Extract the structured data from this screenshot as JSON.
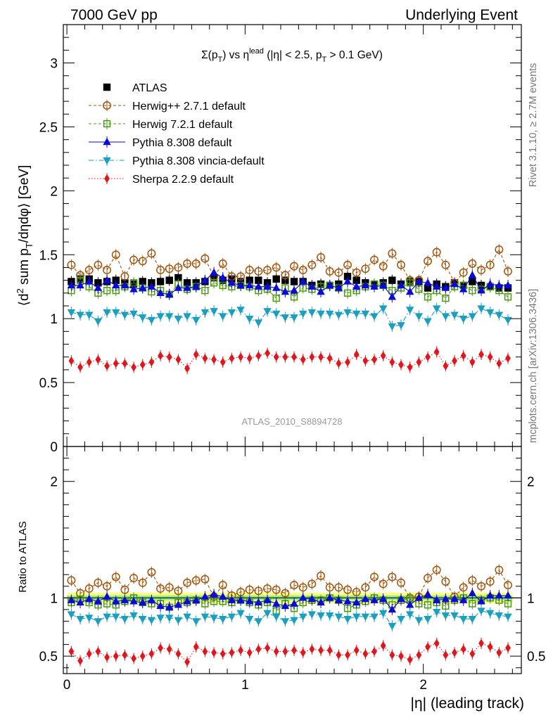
{
  "header": {
    "left": "7000 GeV pp",
    "right": "Underlying Event"
  },
  "plot_title": {
    "prefix": "Σ(p",
    "sub_T": "T",
    "mid": ") vs η",
    "sup_lead": "lead",
    "suffix1": " (|η| < 2.5, p",
    "sub_T2": "T",
    "suffix2": " > 0.1 GeV)"
  },
  "side_labels": {
    "rivet": "Rivet 3.1.10, ≥ 2.7M events",
    "mcplots": "mcplots.cern.ch [arXiv:1306.3436]"
  },
  "watermark": "ATLAS_2010_S8894728",
  "y_label_main": "⟨d² sum p_T/dηdφ⟩ [GeV]",
  "y_label_ratio": "Ratio to ATLAS",
  "x_label": "|η| (leading track)",
  "chart_data": [
    {
      "type": "scatter",
      "panel": "main",
      "xlim": [
        -0.02,
        2.55
      ],
      "ylim": [
        0,
        3.3
      ],
      "x_ticks": [
        "0",
        "1",
        "2"
      ],
      "y_ticks": [
        "0",
        "0.5",
        "1",
        "1.5",
        "2",
        "2.5",
        "3"
      ],
      "legend_position": "top-left",
      "x": [
        0.025,
        0.075,
        0.125,
        0.175,
        0.225,
        0.275,
        0.325,
        0.375,
        0.425,
        0.475,
        0.525,
        0.575,
        0.625,
        0.675,
        0.725,
        0.775,
        0.825,
        0.875,
        0.925,
        0.975,
        1.025,
        1.075,
        1.125,
        1.175,
        1.225,
        1.275,
        1.325,
        1.375,
        1.425,
        1.475,
        1.525,
        1.575,
        1.625,
        1.675,
        1.725,
        1.775,
        1.825,
        1.875,
        1.925,
        1.975,
        2.025,
        2.075,
        2.125,
        2.175,
        2.225,
        2.275,
        2.325,
        2.375,
        2.425,
        2.475
      ],
      "series": [
        {
          "name": "ATLAS",
          "color": "#000000",
          "marker": "square-filled",
          "values": [
            1.29,
            1.31,
            1.31,
            1.28,
            1.29,
            1.3,
            1.28,
            1.27,
            1.29,
            1.28,
            1.29,
            1.3,
            1.32,
            1.28,
            1.28,
            1.29,
            1.32,
            1.3,
            1.31,
            1.29,
            1.3,
            1.3,
            1.28,
            1.31,
            1.3,
            1.29,
            1.29,
            1.26,
            1.27,
            1.26,
            1.27,
            1.33,
            1.3,
            1.28,
            1.27,
            1.28,
            1.3,
            1.27,
            1.29,
            1.29,
            1.24,
            1.27,
            1.25,
            1.28,
            1.26,
            1.29,
            1.26,
            1.25,
            1.24,
            1.24
          ]
        },
        {
          "name": "Herwig++ 2.7.1 default",
          "color": "#a0550f",
          "marker": "circle-open",
          "line": "dashed",
          "values": [
            1.42,
            1.34,
            1.38,
            1.42,
            1.38,
            1.5,
            1.33,
            1.46,
            1.45,
            1.51,
            1.38,
            1.39,
            1.4,
            1.43,
            1.43,
            1.47,
            1.33,
            1.43,
            1.33,
            1.33,
            1.38,
            1.37,
            1.38,
            1.4,
            1.34,
            1.41,
            1.38,
            1.42,
            1.48,
            1.37,
            1.36,
            1.42,
            1.36,
            1.39,
            1.46,
            1.41,
            1.51,
            1.42,
            1.3,
            1.3,
            1.45,
            1.52,
            1.42,
            1.28,
            1.36,
            1.43,
            1.38,
            1.42,
            1.54,
            1.37
          ]
        },
        {
          "name": "Herwig 7.2.1 default",
          "color": "#4a9a0e",
          "marker": "square-open",
          "line": "dashed",
          "values": [
            1.22,
            1.3,
            1.25,
            1.2,
            1.22,
            1.22,
            1.25,
            1.28,
            1.24,
            1.21,
            1.22,
            1.19,
            1.27,
            1.23,
            1.25,
            1.22,
            1.28,
            1.26,
            1.25,
            1.26,
            1.25,
            1.22,
            1.23,
            1.16,
            1.24,
            1.17,
            1.24,
            1.23,
            1.25,
            1.26,
            1.24,
            1.2,
            1.22,
            1.25,
            1.27,
            1.26,
            1.22,
            1.24,
            1.28,
            1.23,
            1.17,
            1.22,
            1.16,
            1.25,
            1.26,
            1.22,
            1.23,
            1.25,
            1.22,
            1.17
          ]
        },
        {
          "name": "Pythia 8.308 default",
          "color": "#0a0ad2",
          "marker": "triangle-up-filled",
          "line": "solid",
          "values": [
            1.26,
            1.26,
            1.29,
            1.24,
            1.3,
            1.26,
            1.26,
            1.23,
            1.24,
            1.25,
            1.2,
            1.19,
            1.24,
            1.24,
            1.25,
            1.3,
            1.36,
            1.32,
            1.28,
            1.26,
            1.26,
            1.25,
            1.25,
            1.24,
            1.21,
            1.22,
            1.29,
            1.25,
            1.21,
            1.26,
            1.24,
            1.29,
            1.25,
            1.26,
            1.25,
            1.26,
            1.17,
            1.26,
            1.21,
            1.29,
            1.28,
            1.25,
            1.24,
            1.27,
            1.23,
            1.34,
            1.22,
            1.27,
            1.26,
            1.26
          ]
        },
        {
          "name": "Pythia 8.308 vincia-default",
          "color": "#1b9fbf",
          "marker": "triangle-down-filled",
          "line": "dashdot",
          "values": [
            1.05,
            1.03,
            1.03,
            0.98,
            1.05,
            1.05,
            1.03,
            1.04,
            1.01,
            0.99,
            1.02,
            1.02,
            1.0,
            1.02,
            0.99,
            1.05,
            1.06,
            1.02,
            1.05,
            1.07,
            1.0,
            0.97,
            1.06,
            1.04,
            1.01,
            1.01,
            1.04,
            1.05,
            1.04,
            1.04,
            1.03,
            1.05,
            1.04,
            1.04,
            1.02,
            1.08,
            0.94,
            0.95,
            1.07,
            1.02,
            0.98,
            1.08,
            1.02,
            1.03,
            1.0,
            1.02,
            1.08,
            1.05,
            1.03,
            0.99
          ]
        },
        {
          "name": "Sherpa 2.2.9 default",
          "color": "#e0161c",
          "marker": "diamond-filled",
          "line": "dotted",
          "values": [
            0.67,
            0.62,
            0.66,
            0.68,
            0.63,
            0.65,
            0.65,
            0.62,
            0.64,
            0.66,
            0.71,
            0.7,
            0.68,
            0.61,
            0.72,
            0.69,
            0.68,
            0.66,
            0.69,
            0.7,
            0.69,
            0.71,
            0.73,
            0.7,
            0.7,
            0.7,
            0.68,
            0.7,
            0.7,
            0.69,
            0.65,
            0.66,
            0.72,
            0.67,
            0.68,
            0.71,
            0.66,
            0.64,
            0.62,
            0.66,
            0.7,
            0.74,
            0.63,
            0.67,
            0.71,
            0.66,
            0.72,
            0.7,
            0.65,
            0.69
          ]
        }
      ]
    },
    {
      "type": "scatter",
      "panel": "ratio",
      "xlim": [
        -0.02,
        2.55
      ],
      "ylim": [
        0.35,
        2.3
      ],
      "y_ticks": [
        "0.5",
        "1",
        "2"
      ],
      "x": [
        0.025,
        0.075,
        0.125,
        0.175,
        0.225,
        0.275,
        0.325,
        0.375,
        0.425,
        0.475,
        0.525,
        0.575,
        0.625,
        0.675,
        0.725,
        0.775,
        0.825,
        0.875,
        0.925,
        0.975,
        1.025,
        1.075,
        1.125,
        1.175,
        1.225,
        1.275,
        1.325,
        1.375,
        1.425,
        1.475,
        1.525,
        1.575,
        1.625,
        1.675,
        1.725,
        1.775,
        1.825,
        1.875,
        1.925,
        1.975,
        2.025,
        2.075,
        2.125,
        2.175,
        2.225,
        2.275,
        2.325,
        2.375,
        2.425,
        2.475
      ],
      "bands": [
        {
          "name": "ATLAS total uncertainty",
          "color": "#ffff80",
          "half_width": 0.045
        },
        {
          "name": "ATLAS stat uncertainty",
          "color": "#90ee90",
          "half_width": 0.02
        }
      ],
      "series": [
        {
          "name": "Herwig++ 2.7.1 default",
          "color": "#a0550f",
          "marker": "circle-open",
          "line": "dashed",
          "values": [
            1.15,
            1.04,
            1.08,
            1.13,
            1.1,
            1.18,
            1.07,
            1.17,
            1.13,
            1.22,
            1.08,
            1.09,
            1.06,
            1.13,
            1.15,
            1.16,
            1.01,
            1.11,
            1.02,
            1.05,
            1.07,
            1.06,
            1.08,
            1.07,
            1.04,
            1.11,
            1.09,
            1.12,
            1.19,
            1.09,
            1.09,
            1.07,
            1.05,
            1.09,
            1.18,
            1.12,
            1.18,
            1.13,
            1.0,
            1.01,
            1.17,
            1.24,
            1.14,
            1.01,
            1.09,
            1.15,
            1.1,
            1.14,
            1.24,
            1.11
          ]
        },
        {
          "name": "Herwig 7.2.1 default",
          "color": "#4a9a0e",
          "marker": "square-open",
          "line": "dashed",
          "values": [
            0.96,
            0.99,
            0.96,
            0.94,
            0.95,
            0.94,
            0.97,
            1.0,
            0.96,
            0.95,
            0.95,
            0.92,
            0.96,
            0.96,
            0.98,
            0.95,
            0.97,
            0.97,
            0.96,
            0.98,
            0.96,
            0.94,
            0.96,
            0.89,
            0.95,
            0.91,
            0.96,
            0.98,
            0.98,
            1.0,
            0.98,
            0.91,
            0.94,
            0.97,
            1.0,
            0.98,
            0.94,
            0.98,
            0.99,
            0.95,
            0.94,
            0.96,
            0.93,
            0.98,
            1.0,
            0.95,
            0.98,
            1.0,
            0.98,
            0.95
          ]
        },
        {
          "name": "Pythia 8.308 default",
          "color": "#0a0ad2",
          "marker": "triangle-up-filled",
          "line": "solid",
          "values": [
            0.98,
            0.96,
            0.99,
            0.97,
            1.01,
            0.97,
            0.98,
            0.97,
            0.96,
            0.98,
            0.93,
            0.92,
            0.94,
            0.97,
            0.98,
            1.01,
            1.03,
            1.01,
            0.98,
            0.98,
            0.97,
            0.96,
            0.98,
            0.95,
            0.93,
            0.95,
            1.0,
            0.99,
            0.96,
            1.0,
            0.98,
            0.97,
            0.96,
            0.99,
            0.98,
            0.99,
            0.9,
            0.99,
            0.94,
            1.0,
            1.03,
            0.98,
            0.99,
            0.99,
            0.98,
            1.04,
            0.97,
            1.02,
            1.02,
            1.02
          ]
        },
        {
          "name": "Pythia 8.308 vincia-default",
          "color": "#1b9fbf",
          "marker": "triangle-down-filled",
          "line": "dashdot",
          "values": [
            0.86,
            0.82,
            0.83,
            0.8,
            0.84,
            0.84,
            0.82,
            0.85,
            0.82,
            0.81,
            0.83,
            0.83,
            0.81,
            0.84,
            0.8,
            0.84,
            0.83,
            0.82,
            0.84,
            0.87,
            0.82,
            0.8,
            0.87,
            0.84,
            0.8,
            0.81,
            0.84,
            0.86,
            0.85,
            0.85,
            0.84,
            0.82,
            0.84,
            0.84,
            0.84,
            0.87,
            0.76,
            0.82,
            0.86,
            0.81,
            0.82,
            0.88,
            0.85,
            0.85,
            0.82,
            0.82,
            0.89,
            0.87,
            0.85,
            0.84
          ]
        },
        {
          "name": "Sherpa 2.2.9 default",
          "color": "#e0161c",
          "marker": "diamond-filled",
          "line": "dotted",
          "values": [
            0.54,
            0.46,
            0.52,
            0.54,
            0.49,
            0.5,
            0.51,
            0.48,
            0.5,
            0.52,
            0.57,
            0.56,
            0.52,
            0.45,
            0.58,
            0.54,
            0.53,
            0.52,
            0.53,
            0.55,
            0.53,
            0.56,
            0.57,
            0.54,
            0.54,
            0.55,
            0.53,
            0.56,
            0.55,
            0.55,
            0.51,
            0.51,
            0.55,
            0.52,
            0.54,
            0.59,
            0.51,
            0.5,
            0.47,
            0.51,
            0.58,
            0.61,
            0.51,
            0.53,
            0.56,
            0.52,
            0.61,
            0.58,
            0.53,
            0.57
          ]
        }
      ]
    }
  ]
}
